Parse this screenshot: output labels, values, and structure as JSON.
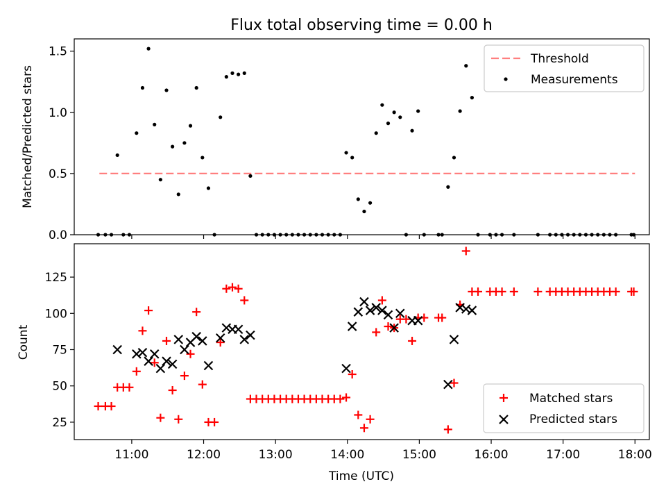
{
  "chart_data": [
    {
      "type": "scatter",
      "title": "Flux total observing time = 0.00 h",
      "xlabel": "",
      "ylabel": "Matched/Predicted stars",
      "xlim": [
        "10:12",
        "18:12"
      ],
      "ylim": [
        0,
        1.6
      ],
      "yticks": [
        0.0,
        0.5,
        1.0,
        1.5
      ],
      "ytick_labels": [
        "0.0",
        "0.5",
        "1.0",
        "1.5"
      ],
      "legend_position": "top-right",
      "threshold": {
        "name": "Threshold",
        "value": 0.5,
        "x_range": [
          "10:33",
          "18:00"
        ],
        "color": "#ff7f7f",
        "style": "dashed"
      },
      "series": [
        {
          "name": "Measurements",
          "color": "#000000",
          "marker": "dot",
          "points": [
            [
              "10:32",
              0
            ],
            [
              "10:38",
              0
            ],
            [
              "10:43",
              0
            ],
            [
              "10:48",
              0.65
            ],
            [
              "10:53",
              0
            ],
            [
              "10:58",
              0
            ],
            [
              "11:04",
              0.83
            ],
            [
              "11:09",
              1.2
            ],
            [
              "11:14",
              1.52
            ],
            [
              "11:19",
              0.9
            ],
            [
              "11:24",
              0.45
            ],
            [
              "11:29",
              1.18
            ],
            [
              "11:34",
              0.72
            ],
            [
              "11:39",
              0.33
            ],
            [
              "11:44",
              0.75
            ],
            [
              "11:49",
              0.89
            ],
            [
              "11:54",
              1.2
            ],
            [
              "11:59",
              0.63
            ],
            [
              "12:04",
              0.38
            ],
            [
              "12:09",
              0
            ],
            [
              "12:14",
              0.96
            ],
            [
              "12:19",
              1.29
            ],
            [
              "12:24",
              1.32
            ],
            [
              "12:29",
              1.31
            ],
            [
              "12:34",
              1.32
            ],
            [
              "12:39",
              0.48
            ],
            [
              "12:44",
              0
            ],
            [
              "12:49",
              0
            ],
            [
              "12:54",
              0
            ],
            [
              "12:59",
              0
            ],
            [
              "13:04",
              0
            ],
            [
              "13:09",
              0
            ],
            [
              "13:14",
              0
            ],
            [
              "13:19",
              0
            ],
            [
              "13:24",
              0
            ],
            [
              "13:29",
              0
            ],
            [
              "13:34",
              0
            ],
            [
              "13:39",
              0
            ],
            [
              "13:44",
              0
            ],
            [
              "13:49",
              0
            ],
            [
              "13:54",
              0
            ],
            [
              "13:59",
              0.67
            ],
            [
              "14:04",
              0.63
            ],
            [
              "14:09",
              0.29
            ],
            [
              "14:14",
              0.19
            ],
            [
              "14:19",
              0.26
            ],
            [
              "14:24",
              0.83
            ],
            [
              "14:29",
              1.06
            ],
            [
              "14:34",
              0.91
            ],
            [
              "14:39",
              1.0
            ],
            [
              "14:44",
              0.96
            ],
            [
              "14:49",
              0
            ],
            [
              "14:54",
              0.85
            ],
            [
              "14:59",
              1.01
            ],
            [
              "15:04",
              0
            ],
            [
              "15:16",
              0
            ],
            [
              "15:19",
              0
            ],
            [
              "15:24",
              0.39
            ],
            [
              "15:29",
              0.63
            ],
            [
              "15:34",
              1.01
            ],
            [
              "15:39",
              1.38
            ],
            [
              "15:44",
              1.12
            ],
            [
              "15:49",
              0
            ],
            [
              "15:59",
              0
            ],
            [
              "16:04",
              0
            ],
            [
              "16:09",
              0
            ],
            [
              "16:19",
              0
            ],
            [
              "16:39",
              0
            ],
            [
              "16:49",
              0
            ],
            [
              "16:54",
              0
            ],
            [
              "16:59",
              0
            ],
            [
              "17:04",
              0
            ],
            [
              "17:09",
              0
            ],
            [
              "17:14",
              0
            ],
            [
              "17:19",
              0
            ],
            [
              "17:24",
              0
            ],
            [
              "17:29",
              0
            ],
            [
              "17:34",
              0
            ],
            [
              "17:39",
              0
            ],
            [
              "17:44",
              0
            ],
            [
              "17:57",
              0
            ],
            [
              "17:59",
              0
            ]
          ]
        }
      ]
    },
    {
      "type": "scatter",
      "title": "",
      "xlabel": "Time (UTC)",
      "ylabel": "Count",
      "xlim": [
        "10:12",
        "18:12"
      ],
      "ylim": [
        13,
        148
      ],
      "yticks": [
        25,
        50,
        75,
        100,
        125
      ],
      "ytick_labels": [
        "25",
        "50",
        "75",
        "100",
        "125"
      ],
      "xticks": [
        "11:00",
        "12:00",
        "13:00",
        "14:00",
        "15:00",
        "16:00",
        "17:00",
        "18:00"
      ],
      "xtick_labels": [
        "11:00",
        "12:00",
        "13:00",
        "14:00",
        "15:00",
        "16:00",
        "17:00",
        "18:00"
      ],
      "legend_position": "bottom-right",
      "series": [
        {
          "name": "Matched stars",
          "color": "#ff0000",
          "marker": "plus",
          "points": [
            [
              "10:32",
              36
            ],
            [
              "10:38",
              36
            ],
            [
              "10:43",
              36
            ],
            [
              "10:48",
              49
            ],
            [
              "10:53",
              49
            ],
            [
              "10:58",
              49
            ],
            [
              "11:04",
              60
            ],
            [
              "11:09",
              88
            ],
            [
              "11:14",
              102
            ],
            [
              "11:19",
              66
            ],
            [
              "11:24",
              28
            ],
            [
              "11:29",
              81
            ],
            [
              "11:34",
              47
            ],
            [
              "11:39",
              27
            ],
            [
              "11:44",
              57
            ],
            [
              "11:49",
              72
            ],
            [
              "11:54",
              101
            ],
            [
              "11:59",
              51
            ],
            [
              "12:04",
              25
            ],
            [
              "12:09",
              25
            ],
            [
              "12:14",
              80
            ],
            [
              "12:19",
              117
            ],
            [
              "12:24",
              118
            ],
            [
              "12:29",
              117
            ],
            [
              "12:34",
              109
            ],
            [
              "12:39",
              41
            ],
            [
              "12:44",
              41
            ],
            [
              "12:49",
              41
            ],
            [
              "12:54",
              41
            ],
            [
              "12:59",
              41
            ],
            [
              "13:04",
              41
            ],
            [
              "13:09",
              41
            ],
            [
              "13:14",
              41
            ],
            [
              "13:19",
              41
            ],
            [
              "13:24",
              41
            ],
            [
              "13:29",
              41
            ],
            [
              "13:34",
              41
            ],
            [
              "13:39",
              41
            ],
            [
              "13:44",
              41
            ],
            [
              "13:49",
              41
            ],
            [
              "13:54",
              41
            ],
            [
              "13:59",
              42
            ],
            [
              "14:04",
              58
            ],
            [
              "14:09",
              30
            ],
            [
              "14:14",
              21
            ],
            [
              "14:19",
              27
            ],
            [
              "14:24",
              87
            ],
            [
              "14:29",
              109
            ],
            [
              "14:34",
              91
            ],
            [
              "14:39",
              90
            ],
            [
              "14:44",
              96
            ],
            [
              "14:49",
              96
            ],
            [
              "14:54",
              81
            ],
            [
              "14:59",
              97
            ],
            [
              "15:04",
              97
            ],
            [
              "15:16",
              97
            ],
            [
              "15:19",
              97
            ],
            [
              "15:24",
              20
            ],
            [
              "15:29",
              52
            ],
            [
              "15:34",
              106
            ],
            [
              "15:39",
              143
            ],
            [
              "15:44",
              115
            ],
            [
              "15:49",
              115
            ],
            [
              "15:59",
              115
            ],
            [
              "16:04",
              115
            ],
            [
              "16:09",
              115
            ],
            [
              "16:19",
              115
            ],
            [
              "16:39",
              115
            ],
            [
              "16:49",
              115
            ],
            [
              "16:54",
              115
            ],
            [
              "16:59",
              115
            ],
            [
              "17:04",
              115
            ],
            [
              "17:09",
              115
            ],
            [
              "17:14",
              115
            ],
            [
              "17:19",
              115
            ],
            [
              "17:24",
              115
            ],
            [
              "17:29",
              115
            ],
            [
              "17:34",
              115
            ],
            [
              "17:39",
              115
            ],
            [
              "17:44",
              115
            ],
            [
              "17:57",
              115
            ],
            [
              "17:59",
              115
            ]
          ]
        },
        {
          "name": "Predicted stars",
          "color": "#000000",
          "marker": "x",
          "points": [
            [
              "10:48",
              75
            ],
            [
              "11:04",
              72
            ],
            [
              "11:09",
              73
            ],
            [
              "11:14",
              67
            ],
            [
              "11:19",
              72
            ],
            [
              "11:24",
              62
            ],
            [
              "11:29",
              67
            ],
            [
              "11:34",
              65
            ],
            [
              "11:39",
              82
            ],
            [
              "11:44",
              75
            ],
            [
              "11:49",
              80
            ],
            [
              "11:54",
              84
            ],
            [
              "11:59",
              81
            ],
            [
              "12:04",
              64
            ],
            [
              "12:14",
              83
            ],
            [
              "12:19",
              90
            ],
            [
              "12:24",
              89
            ],
            [
              "12:29",
              89
            ],
            [
              "12:34",
              82
            ],
            [
              "12:39",
              85
            ],
            [
              "13:59",
              62
            ],
            [
              "14:04",
              91
            ],
            [
              "14:09",
              101
            ],
            [
              "14:14",
              108
            ],
            [
              "14:19",
              102
            ],
            [
              "14:24",
              104
            ],
            [
              "14:29",
              102
            ],
            [
              "14:34",
              99
            ],
            [
              "14:39",
              90
            ],
            [
              "14:44",
              100
            ],
            [
              "14:54",
              95
            ],
            [
              "14:59",
              95
            ],
            [
              "15:24",
              51
            ],
            [
              "15:29",
              82
            ],
            [
              "15:34",
              104
            ],
            [
              "15:39",
              103
            ],
            [
              "15:44",
              102
            ]
          ]
        }
      ]
    }
  ]
}
